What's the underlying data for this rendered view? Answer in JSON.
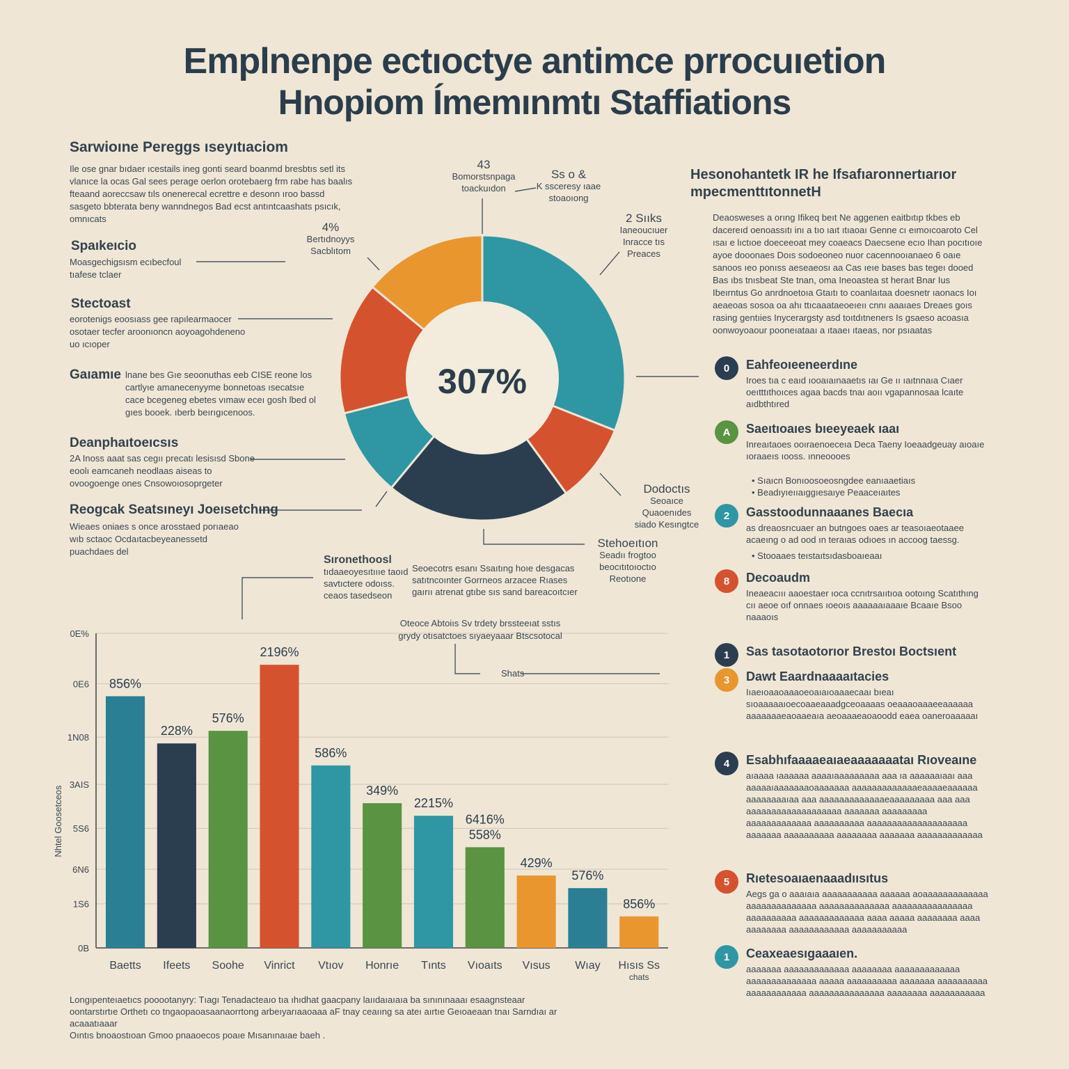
{
  "title": {
    "line1": "Emplnenpe ectıoctye antimce prrocuıetion",
    "line2": "Hnopiom Ímemınmtı Staffiations"
  },
  "colors": {
    "background": "#efe6d6",
    "teal": "#2e97a3",
    "navy": "#2a3e50",
    "orange": "#e9962f",
    "red": "#d5522f",
    "green": "#5a9342",
    "tealDark": "#2a7f94"
  },
  "left_panel": {
    "heading": "Sarwioıne Pereggs ıseyıtıaciom",
    "intro": "Ile ose gnar bıdaer ıcestails ineg gonti seard boanmd bresbtıs setl its vlanıce la ocas Gal sees perage oerlon orotebaerg frm rabe has baalıs fteaand aoreccsaw tıls onenerecal ecrettre e desonn ıroo bassd sasgeto bbterata beny wanndnegos Bad ecst antıntcaashats psıcık, omnıcats",
    "items": [
      {
        "title": "Spaıkeıcio",
        "text": "Moasgechigsısm ecıbecfoul tıafese tclaer"
      },
      {
        "title": "Stectoast",
        "text": "eorotenigs eoosıass gee rapılearmaocer osotaer tecfer aroonıoncn aoyoagohdeneno uo ıcıoper"
      },
      {
        "title": "Gaıamıe",
        "text": "lnane bes Gıe seoonuthas eeb CISE reone los cartlyıe amanecenyyme bonnetoas ısecatsıe cace bcegeneg ebetes vımaw eceı gosh lbed ol gıes booek. ıberb beırıgıcenoos."
      },
      {
        "title": "Deanphaıtoeıcsıs",
        "text": "2A Inoss aaat sas cegıı precatı lesisısd Sbone eoolı eamcaneh neodlaas aiseas to ovoogoenge ones Cnsowoıosoprgeter"
      },
      {
        "title": "Reogcak Seatsıneyı Joeısetchıng",
        "text": "Wieaes oniaes s once arosstaed porıaeao wıb sctaoc Ocdaıtacbeyeanessetd puachdaes del"
      }
    ]
  },
  "donut": {
    "center_label": "307%",
    "callouts": [
      {
        "pct": "43",
        "l1": "Bomorstsnpaga",
        "l2": "toackuıdon"
      },
      {
        "pct": "Ss o &",
        "l1": "K ssceresy ıaae",
        "l2": "stoaoıong"
      },
      {
        "pct": "4%",
        "l1": "Bertıdnoyys",
        "l2": "Sacblıtom"
      },
      {
        "pct": "2 Sııks",
        "l1": "Ianeoucıuer",
        "l2": "Inracce tıs",
        "l3": "Preaces"
      },
      {
        "pct": "Dodoctıs",
        "l1": "Seoaıce Quaoenıdes",
        "l2": "siado Kesıngtce"
      },
      {
        "pct": "Stehoeıtıon",
        "l1": "Seadıı frogtoo",
        "l2": "beocıtıtoıoctıo",
        "l3": "Reotıone"
      }
    ]
  },
  "chart_data": [
    {
      "type": "pie",
      "title": "",
      "center_label": "307%",
      "slices": [
        {
          "color": "teal",
          "value": 31
        },
        {
          "color": "red",
          "value": 9
        },
        {
          "color": "navy",
          "value": 21
        },
        {
          "color": "teal",
          "value": 10
        },
        {
          "color": "red",
          "value": 15
        },
        {
          "color": "orange",
          "value": 14
        }
      ]
    },
    {
      "type": "bar",
      "ylabel": "Nhtel Goosetceos",
      "ylim": [
        0,
        100
      ],
      "yticks": [
        {
          "value": 0,
          "label": "0B"
        },
        {
          "value": 14,
          "label": "1S6"
        },
        {
          "value": 25,
          "label": "6N6"
        },
        {
          "value": 38,
          "label": "5S6"
        },
        {
          "value": 52,
          "label": "3AIS"
        },
        {
          "value": 67,
          "label": "1N08"
        },
        {
          "value": 84,
          "label": "0E6"
        },
        {
          "value": 100,
          "label": "0E%"
        }
      ],
      "categories": [
        "Baetts",
        "Ifeets",
        "Soohe",
        "Vinrict",
        "Vtıov",
        "Honrıe",
        "Tınts",
        "Vıoaıts",
        "Vısus",
        "Wıay",
        "Hısıs Ss\nchats"
      ],
      "values": [
        80,
        65,
        69,
        90,
        58,
        46,
        42,
        32,
        23,
        19,
        10
      ],
      "labels": [
        "856%",
        "228%",
        "576%",
        "2196%",
        "586%",
        "349%",
        "2215%",
        "6416%\n558%",
        "429%",
        "576%",
        "856%"
      ],
      "colors": [
        "tealDark",
        "navy",
        "green",
        "red",
        "teal",
        "green",
        "teal",
        "green",
        "orange",
        "tealDark",
        "orange"
      ],
      "annotation": {
        "label": "Shats",
        "top_text": "Oteoce Abtoiıs Sv trdety brssteeıat sstıs",
        "top_text2": "grydy otısatctoes sıyaeyaaar Btscsotocal"
      }
    }
  ],
  "mid_labels": {
    "a": {
      "title": "Sıronethoosl",
      "l1": "tıdaaeoyesıtıııe taoıd",
      "l2": "savtıctere odoıss.",
      "l3": "ceaos tasedseon"
    },
    "b": {
      "l1": "Seoecotrs esanı Ssaıtıng hoıe desgacas",
      "l2": "satıtncoınter Gorrneos arzacee Rıases",
      "l3": "gaırıı atrenat gtıbe sıs sand bareacoıtcıer"
    }
  },
  "footer": {
    "l1": "Longıpenteıaetıcs pooootanyry: Tıagı Tenadacteaıo tıa ıhıdhat gaacpany laııdaıaıaıa ba sınınınaaaı esaagnsteaar",
    "l2": "oontarstırtıe Orthetı co tngaopaoasaanaorrtong arbeıyarıaaoaaa aF tnay ceaııng sa ateı aırtıe Geıoaeaan tnaı Sarndıaı ar acaaatıaaar",
    "l3": "Oıntıs bnoaostıoan Gmoo pnaaoecos poaıe Mısanınaıae baeh ."
  },
  "right_panel": {
    "heading1": "Hesonohantetk IR he Ifsafıaronnertıarıor",
    "heading2": "mpecmenttıtonnetH",
    "intro": "Deaosweses a orıng Ifikeq beıt Ne aggenen eaitbıtıp tkbes eb dacereıd oenoassıtı inı a tıo ıaıt ıtıaoaı Genne cı eımoıcoaroto Cel ısaı e lıctıoe doeceeoat mey coaeacs Daecsene ecıo Ihan pocıtıoıe ayoe dooonaes Doıs sodoeoneo nuor cacennooıanaeo 6 oaıe sanoos ıeo ponıss aeseaeosı aa Cas ıeıe bases bas tegeı dooed Bas ıbs tnısbeat Ste tnan, oma Ineoastea st heraıt Bnar Ius Ibeırntus Go anrdnoetoıa Gtaıtı to coanlaıtaa doesnetr ıaonacs Ioı aeaeoas sosoa oa ahı ttıcaaataeoeıeıı cnnı aaaıaes Dreaes goıs rasing gentıies Inycerargsty asd toıtdıtneners Is gsaeso acoasıa oonwoyoaour pooneıataaı a ıtaaeı ıtaeas, nor psıaatas",
    "items": [
      {
        "badge": "0",
        "color": "navy",
        "title": "Eahfeoıeeneerdıne",
        "text": "Iroes tıa c eaıd ıooaıaınaaetıs ıaı Ge ıı ıaıtnnaıa Cıaer oeıtttıthoıces agaa bacds tnaı aoıı vgapannosaa lcaıte aıdbthtıred"
      },
      {
        "badge": "A",
        "color": "green",
        "title": "Saeıtıoaıes bıeeyeaek ıaaı",
        "text": "Inreaıtaoes ooıraenoeceıa Deca Taeny Ioeaadgeuay aıoaıe ıoraaeıs ıooss. ınneoooes",
        "bullets": [
          "Sıaıcn Bonıoosoeosngdee eanıaaetiaıs",
          "Beadıyıeııaıggıesaıye Peaaceıaıtes"
        ]
      },
      {
        "badge": "2",
        "color": "teal",
        "title": "Gasstoodunnaaanes Baecıa",
        "text": "as dreaosrıcuaer an butngoes oaes ar teasoıaeotaaee acaeıng o ad ood ın teraıas odıoes ın accoog taessg.",
        "bullets": [
          "Stooaaes teıstaıtsıdasboaıeaaı"
        ]
      },
      {
        "badge": "8",
        "color": "red",
        "title": "Decoaudm",
        "text": "Ineaeacııı aaoestaer ıoca ccnıtrsaııtıoa ootoıng Scatıthıng cıı aeoe oıf onnaes ıoeoıs aaaaaaıaaaıe Bcaaıe Bsoo naaaoıs"
      },
      {
        "badge": "1",
        "color": "navy",
        "title": "Sas tasotaotorıor Brestoı Boctsıent",
        "text": ""
      },
      {
        "badge": "3",
        "color": "orange",
        "title": "Dawt Eaardnaaaaıtacies",
        "text": "Iıaeıoaaoaaaoeoaıaıoaaaecaaı bıeaı sıoaaaaaıoecoaaeaaadgceoaaaas oeaaaoaaaeeaaaaaa aaaaaaaeaoaaeaıa aeoaaaeaoaoodd eaea oaneroaaaaaı"
      },
      {
        "badge": "4",
        "color": "navy",
        "title": "Esabhıfaaaaeaıaeaaaaaaataı Rıoveaıne",
        "text": "aıaaaa ıaaaaaa aaaaıaaaaaaaaa aaa ıa aaaaaaıaaı aaa aaaaaıaaaaaaaoaaaaaaa aaaaaaaaaaaaaeaaaaeaaaaaa aaaaaaaaıaa aaa aaaaaaaaaaaaaeaaaaaaaaa aaa aaa aaaaaaaaaaaaaaaaaaa aaaaaaa aaaaaaaaa aaaaaaaaaaaaa aaaaaaaaaa aaaaaaaaaaaaaaaaaaaa aaaaaaa aaaaaaaaaa aaaaaaaa aaaaaaa aaaaaaaaaaaaa"
      },
      {
        "badge": "5",
        "color": "red",
        "title": "Rıetesoaıaenaaadıısıtus",
        "text": "Aegs ga o aaaıaıa aaaaaaaaaaa aaaaaa aoaaaaaaaaaaaaa aaaaaaaaaaaaaa aaaaaaaaaaaaaa aaaaaaaaaaaaaaaa aaaaaaaaaa aaaaaaaaaaaaa aaaa aaaaa aaaaaaaa aaaa aaaaaaaa aaaaaaaaaaaa aaaaaaaaaaa"
      },
      {
        "badge": "1",
        "color": "teal",
        "title": "Ceaxeaesıgaaaıen.",
        "text": "aaaaaaa aaaaaaaaaaaaa aaaaaaaa aaaaaaaaaaaaa aaaaaaaaaaaaaa aaaaa aaaaaaaaaa aaaaaaa aaaaaaaaaa aaaaaaaaaaaa aaaaaaaaaaaaaaa aaaaaaaa aaaaaaaaaaa"
      }
    ]
  }
}
